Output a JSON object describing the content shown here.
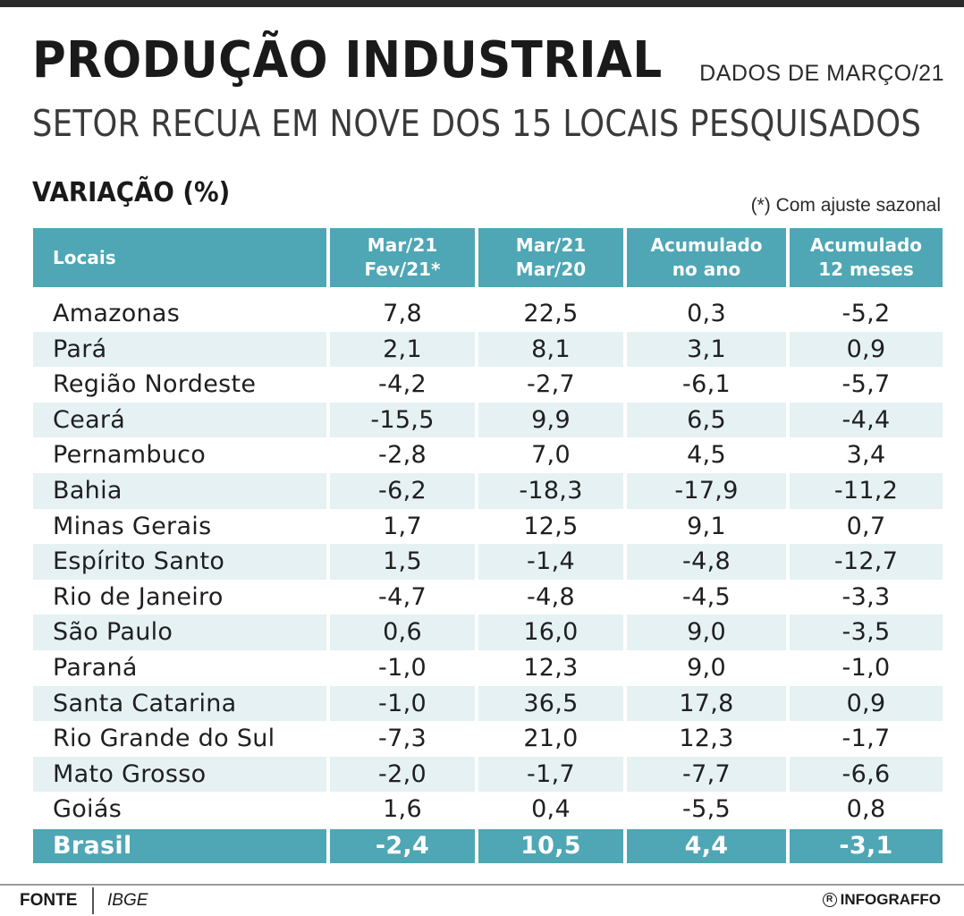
{
  "header": {
    "title": "PRODUÇÃO INDUSTRIAL",
    "date_label": "DADOS DE MARÇO/21",
    "subtitle": "SETOR RECUA EM NOVE DOS 15 LOCAIS PESQUISADOS",
    "section_label": "VARIAÇÃO (%)",
    "note": "(*) Com ajuste sazonal"
  },
  "chart_data": {
    "type": "table",
    "columns": [
      {
        "line1": "Locais",
        "line2": ""
      },
      {
        "line1": "Mar/21",
        "line2": "Fev/21*"
      },
      {
        "line1": "Mar/21",
        "line2": "Mar/20"
      },
      {
        "line1": "Acumulado",
        "line2": "no ano"
      },
      {
        "line1": "Acumulado",
        "line2": "12 meses"
      }
    ],
    "rows": [
      {
        "local": "Amazonas",
        "values": [
          "7,8",
          "22,5",
          "0,3",
          "-5,2"
        ]
      },
      {
        "local": "Pará",
        "values": [
          "2,1",
          "8,1",
          "3,1",
          "0,9"
        ]
      },
      {
        "local": "Região Nordeste",
        "values": [
          "-4,2",
          "-2,7",
          "-6,1",
          "-5,7"
        ]
      },
      {
        "local": "Ceará",
        "values": [
          "-15,5",
          "9,9",
          "6,5",
          "-4,4"
        ]
      },
      {
        "local": "Pernambuco",
        "values": [
          "-2,8",
          "7,0",
          "4,5",
          "3,4"
        ]
      },
      {
        "local": "Bahia",
        "values": [
          "-6,2",
          "-18,3",
          "-17,9",
          "-11,2"
        ]
      },
      {
        "local": "Minas Gerais",
        "values": [
          "1,7",
          "12,5",
          "9,1",
          "0,7"
        ]
      },
      {
        "local": "Espírito Santo",
        "values": [
          "1,5",
          "-1,4",
          "-4,8",
          "-12,7"
        ]
      },
      {
        "local": "Rio de Janeiro",
        "values": [
          "-4,7",
          "-4,8",
          "-4,5",
          "-3,3"
        ]
      },
      {
        "local": "São Paulo",
        "values": [
          "0,6",
          "16,0",
          "9,0",
          "-3,5"
        ]
      },
      {
        "local": "Paraná",
        "values": [
          "-1,0",
          "12,3",
          "9,0",
          "-1,0"
        ]
      },
      {
        "local": "Santa Catarina",
        "values": [
          "-1,0",
          "36,5",
          "17,8",
          "0,9"
        ]
      },
      {
        "local": "Rio Grande do Sul",
        "values": [
          "-7,3",
          "21,0",
          "12,3",
          "-1,7"
        ]
      },
      {
        "local": "Mato Grosso",
        "values": [
          "-2,0",
          "-1,7",
          "-7,7",
          "-6,6"
        ]
      },
      {
        "local": "Goiás",
        "values": [
          "1,6",
          "0,4",
          "-5,5",
          "0,8"
        ]
      }
    ],
    "total": {
      "local": "Brasil",
      "values": [
        "-2,4",
        "10,5",
        "4,4",
        "-3,1"
      ]
    }
  },
  "footer": {
    "source_label": "FONTE",
    "source": "IBGE",
    "credit": "INFOGRAFFO",
    "credit_icon": "registered-icon"
  },
  "colors": {
    "accent": "#4fa6b4",
    "row_alt": "#e6f1f4",
    "text": "#1a1a1a"
  }
}
